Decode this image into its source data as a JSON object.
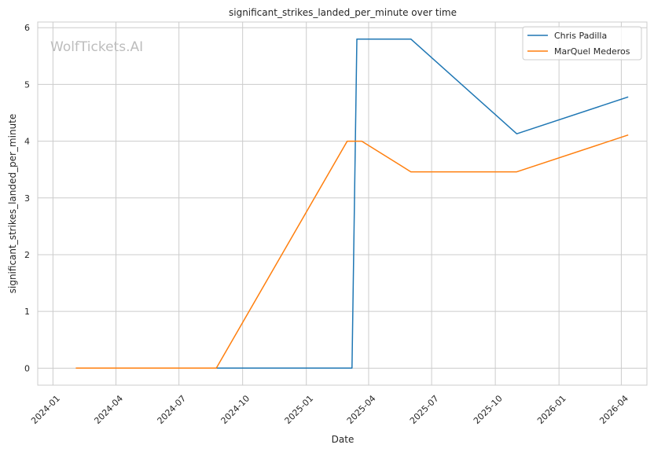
{
  "chart_data": {
    "type": "line",
    "title": "significant_strikes_landed_per_minute over time",
    "xlabel": "Date",
    "ylabel": "significant_strikes_landed_per_minute",
    "watermark": "WolfTickets.AI",
    "xlim": [
      "2023-12-10",
      "2026-05-08"
    ],
    "ylim": [
      -0.3,
      6.1
    ],
    "x_ticks": [
      "2024-01",
      "2024-04",
      "2024-07",
      "2024-10",
      "2025-01",
      "2025-04",
      "2025-07",
      "2025-10",
      "2026-01",
      "2026-04"
    ],
    "y_ticks": [
      0,
      1,
      2,
      3,
      4,
      5,
      6
    ],
    "grid": true,
    "legend_position": "top-right",
    "series": [
      {
        "name": "Chris Padilla",
        "color": "#1f77b4",
        "points": [
          {
            "x": "2024-04-26",
            "y": 0
          },
          {
            "x": "2025-03-08",
            "y": 0
          },
          {
            "x": "2025-03-15",
            "y": 5.8
          },
          {
            "x": "2025-06-01",
            "y": 5.8
          },
          {
            "x": "2025-11-01",
            "y": 4.13
          },
          {
            "x": "2026-04-11",
            "y": 4.78
          }
        ]
      },
      {
        "name": "MarQuel Mederos",
        "color": "#ff7f0e",
        "points": [
          {
            "x": "2024-02-03",
            "y": 0
          },
          {
            "x": "2024-08-24",
            "y": 0
          },
          {
            "x": "2025-03-01",
            "y": 4.0
          },
          {
            "x": "2025-03-22",
            "y": 4.0
          },
          {
            "x": "2025-06-01",
            "y": 3.46
          },
          {
            "x": "2025-11-01",
            "y": 3.46
          },
          {
            "x": "2026-04-11",
            "y": 4.11
          }
        ]
      }
    ]
  }
}
